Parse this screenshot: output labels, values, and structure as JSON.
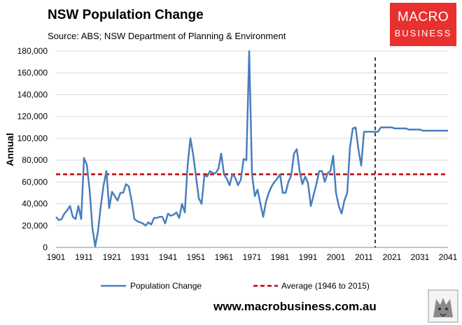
{
  "header": {
    "title": "NSW Population Change",
    "subtitle": "Source: ABS; NSW Department of Planning & Environment"
  },
  "logo": {
    "line1": "MACRO",
    "line2": "BUSINESS",
    "color": "#e8312f"
  },
  "footer": {
    "website": "www.macrobusiness.com.au"
  },
  "colors": {
    "series": "#4a7ebb",
    "average": "#c00000",
    "projection_line": "#000000"
  },
  "chart_data": {
    "type": "line",
    "title": "NSW Population Change",
    "xlabel": "",
    "ylabel": "Annual",
    "xlim": [
      1901,
      2041
    ],
    "ylim": [
      0,
      180000
    ],
    "x_ticks": [
      1901,
      1911,
      1921,
      1931,
      1941,
      1951,
      1961,
      1971,
      1981,
      1991,
      2001,
      2011,
      2021,
      2031,
      2041
    ],
    "y_ticks": [
      0,
      20000,
      40000,
      60000,
      80000,
      100000,
      120000,
      140000,
      160000,
      180000
    ],
    "y_tick_labels": [
      "0",
      "20,000",
      "40,000",
      "60,000",
      "80,000",
      "100,000",
      "120,000",
      "140,000",
      "160,000",
      "180,000"
    ],
    "grid": "horizontal",
    "legend_position": "bottom",
    "series": [
      {
        "name": "Population Change",
        "x": [
          1901,
          1902,
          1903,
          1904,
          1905,
          1906,
          1907,
          1908,
          1909,
          1910,
          1911,
          1912,
          1913,
          1914,
          1915,
          1916,
          1917,
          1918,
          1919,
          1920,
          1921,
          1922,
          1923,
          1924,
          1925,
          1926,
          1927,
          1928,
          1929,
          1930,
          1931,
          1932,
          1933,
          1934,
          1935,
          1936,
          1937,
          1938,
          1939,
          1940,
          1941,
          1942,
          1943,
          1944,
          1945,
          1946,
          1947,
          1948,
          1949,
          1950,
          1951,
          1952,
          1953,
          1954,
          1955,
          1956,
          1957,
          1958,
          1959,
          1960,
          1961,
          1962,
          1963,
          1964,
          1965,
          1966,
          1967,
          1968,
          1969,
          1970,
          1971,
          1972,
          1973,
          1974,
          1975,
          1976,
          1977,
          1978,
          1979,
          1980,
          1981,
          1982,
          1983,
          1984,
          1985,
          1986,
          1987,
          1988,
          1989,
          1990,
          1991,
          1992,
          1993,
          1994,
          1995,
          1996,
          1997,
          1998,
          1999,
          2000,
          2001,
          2002,
          2003,
          2004,
          2005,
          2006,
          2007,
          2008,
          2009,
          2010,
          2011,
          2012,
          2013,
          2014,
          2015,
          2016,
          2017,
          2018,
          2019,
          2020,
          2021,
          2022,
          2023,
          2024,
          2025,
          2026,
          2027,
          2028,
          2029,
          2030,
          2031,
          2032,
          2033,
          2034,
          2035,
          2036,
          2037,
          2038,
          2039,
          2040,
          2041
        ],
        "values": [
          28000,
          25000,
          26000,
          31000,
          34000,
          38000,
          28000,
          26000,
          38000,
          26000,
          82000,
          76000,
          53000,
          18000,
          1000,
          15000,
          38000,
          57000,
          70000,
          36000,
          51000,
          47000,
          43000,
          50000,
          50000,
          58000,
          56000,
          43000,
          26000,
          24000,
          23000,
          22000,
          20000,
          23000,
          21000,
          27000,
          27000,
          28000,
          28000,
          22000,
          31000,
          29000,
          30000,
          32000,
          27000,
          40000,
          32000,
          75000,
          100000,
          85000,
          65000,
          45000,
          40000,
          66000,
          65000,
          70000,
          68000,
          68000,
          72000,
          86000,
          67000,
          63000,
          57000,
          67000,
          64000,
          57000,
          62000,
          81000,
          80000,
          180000,
          67000,
          47000,
          53000,
          40000,
          28000,
          42000,
          50000,
          56000,
          60000,
          63000,
          67000,
          50000,
          50000,
          60000,
          66000,
          86000,
          90000,
          70000,
          58000,
          65000,
          59000,
          38000,
          48000,
          58000,
          70000,
          70000,
          60000,
          68000,
          70000,
          84000,
          50000,
          38000,
          31000,
          43000,
          50000,
          92000,
          109000,
          110000,
          90000,
          75000,
          106000,
          106000,
          106000,
          106000,
          106000,
          106000,
          110000,
          110000,
          110000,
          110000,
          110000,
          109000,
          109000,
          109000,
          109000,
          109000,
          108000,
          108000,
          108000,
          108000,
          108000,
          107000,
          107000,
          107000,
          107000,
          107000,
          107000,
          107000,
          107000,
          107000,
          107000
        ]
      },
      {
        "name": "Average (1946 to 2015)",
        "value": 67000,
        "style": "dashed"
      }
    ],
    "annotations": [
      {
        "type": "vertical-dashed-line",
        "x": 2015
      }
    ]
  }
}
